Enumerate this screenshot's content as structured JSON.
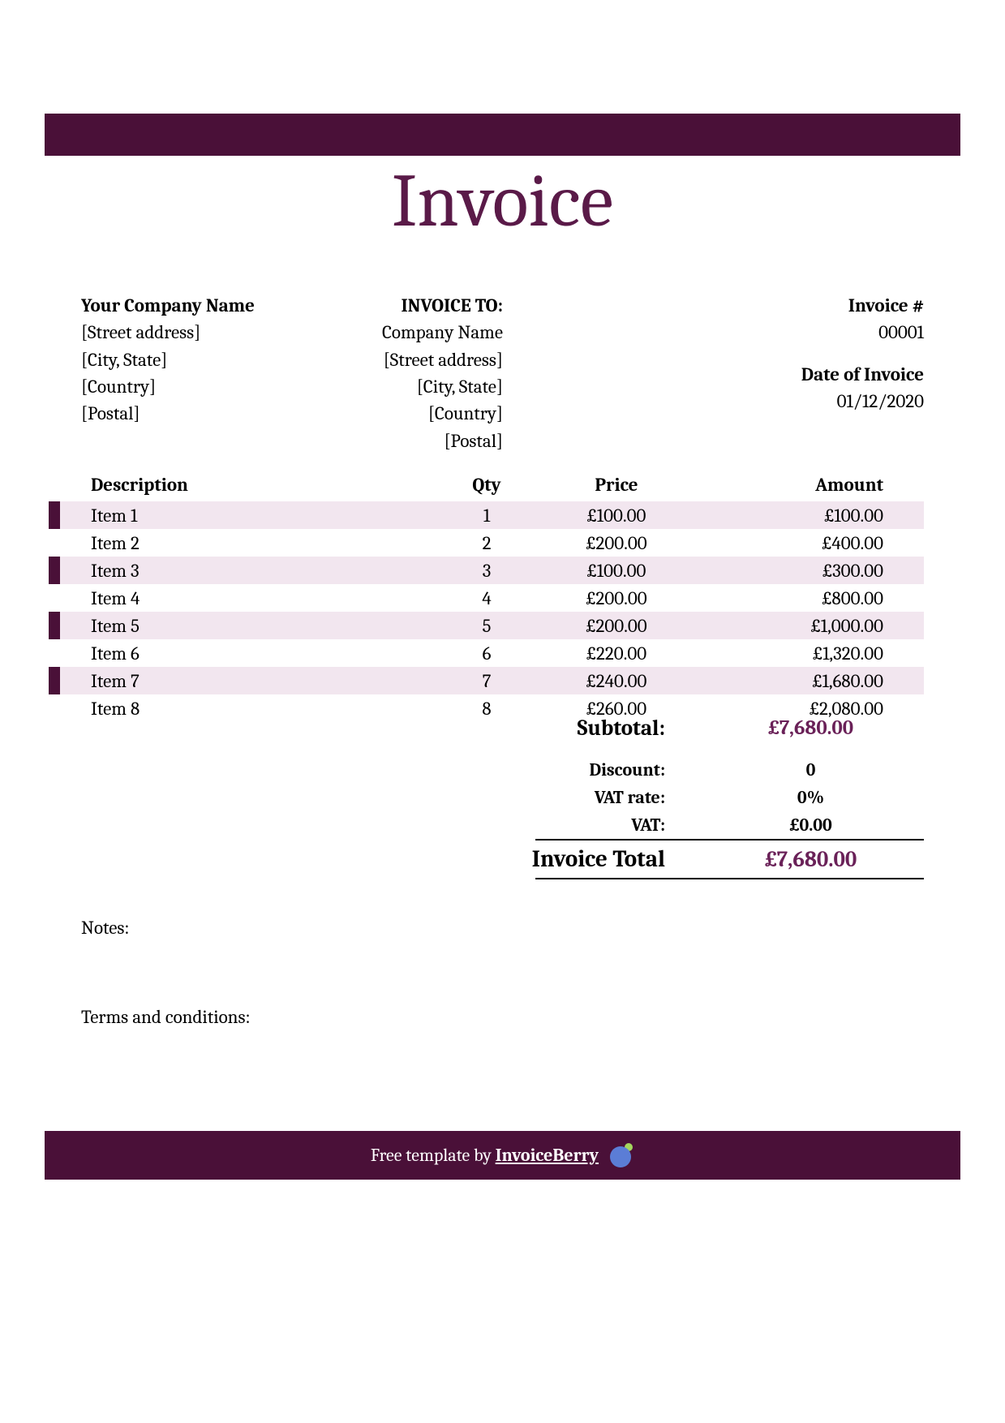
{
  "colors": {
    "brand_dark": "#4a1038",
    "brand_accent": "#6a2158",
    "row_tint": "#f2e6ef",
    "text": "#000000",
    "background": "#ffffff",
    "footer_text": "#ffffff",
    "logo_blue": "#5b7dd6",
    "logo_green": "#a4d65e"
  },
  "title": "Invoice",
  "from": {
    "heading": "Your Company Name",
    "street": "[Street address]",
    "city_state": "[City, State]",
    "country": "[Country]",
    "postal": "[Postal]"
  },
  "to": {
    "heading": "INVOICE TO:",
    "company": "Company Name",
    "street": "[Street address]",
    "city_state": "[City, State]",
    "country": "[Country]",
    "postal": "[Postal]"
  },
  "meta": {
    "invoice_number_label": "Invoice #",
    "invoice_number": "00001",
    "date_label": "Date of Invoice",
    "date": "01/12/2020"
  },
  "table": {
    "headers": {
      "description": "Description",
      "qty": "Qty",
      "price": "Price",
      "amount": "Amount"
    },
    "rows": [
      {
        "description": "Item 1",
        "qty": "1",
        "price": "£100.00",
        "amount": "£100.00"
      },
      {
        "description": "Item 2",
        "qty": "2",
        "price": "£200.00",
        "amount": "£400.00"
      },
      {
        "description": "Item 3",
        "qty": "3",
        "price": "£100.00",
        "amount": "£300.00"
      },
      {
        "description": "Item 4",
        "qty": "4",
        "price": "£200.00",
        "amount": "£800.00"
      },
      {
        "description": "Item 5",
        "qty": "5",
        "price": "£200.00",
        "amount": "£1,000.00"
      },
      {
        "description": "Item 6",
        "qty": "6",
        "price": "£220.00",
        "amount": "£1,320.00"
      },
      {
        "description": "Item 7",
        "qty": "7",
        "price": "£240.00",
        "amount": "£1,680.00"
      },
      {
        "description": "Item 8",
        "qty": "8",
        "price": "£260.00",
        "amount": "£2,080.00"
      }
    ]
  },
  "totals": {
    "subtotal_label": "Subtotal:",
    "subtotal_value": "£7,680.00",
    "discount_label": "Discount:",
    "discount_value": "0",
    "vat_rate_label": "VAT rate:",
    "vat_rate_value": "0%",
    "vat_label": "VAT:",
    "vat_value": "£0.00",
    "grand_label": "Invoice Total",
    "grand_value": "£7,680.00"
  },
  "notes_label": "Notes:",
  "terms_label": "Terms and conditions:",
  "footer": {
    "prefix": "Free template by ",
    "brand": "InvoiceBerry"
  }
}
